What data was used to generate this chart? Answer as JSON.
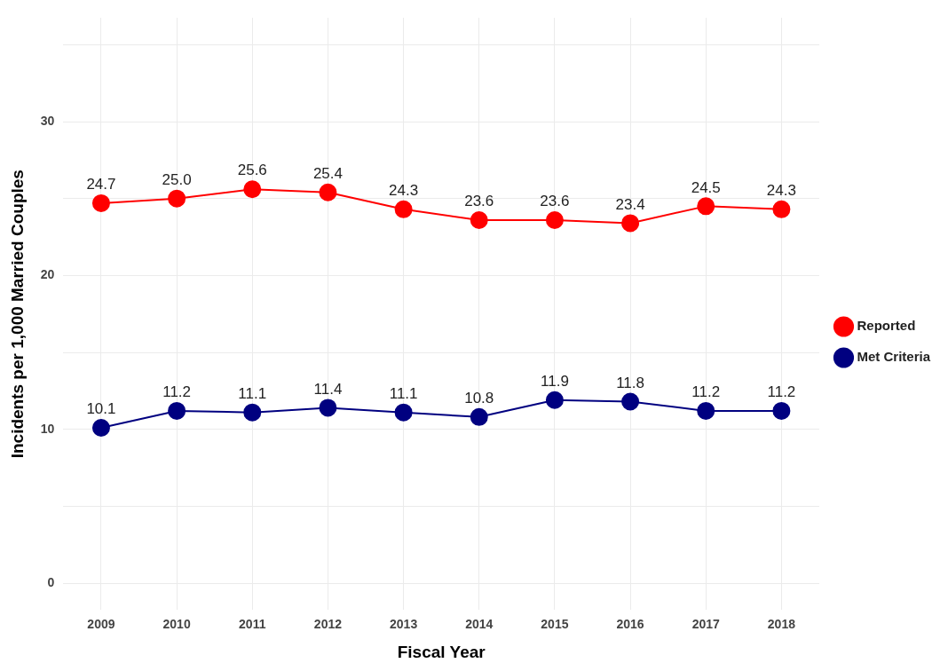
{
  "chart_data": {
    "type": "line",
    "xlabel": "Fiscal Year",
    "ylabel": "Incidents per 1,000 Married Couples",
    "categories": [
      "2009",
      "2010",
      "2011",
      "2012",
      "2013",
      "2014",
      "2015",
      "2016",
      "2017",
      "2018"
    ],
    "series": [
      {
        "name": "Reported",
        "color": "#ff0000",
        "values": [
          24.7,
          25.0,
          25.6,
          25.4,
          24.3,
          23.6,
          23.6,
          23.4,
          24.5,
          24.3
        ],
        "value_labels": [
          "24.7",
          "25.0",
          "25.6",
          "25.4",
          "24.3",
          "23.6",
          "23.6",
          "23.4",
          "24.5",
          "24.3"
        ]
      },
      {
        "name": "Met Criteria",
        "color": "#000080",
        "values": [
          10.1,
          11.2,
          11.1,
          11.4,
          11.1,
          10.8,
          11.9,
          11.8,
          11.2,
          11.2
        ],
        "value_labels": [
          "10.1",
          "11.2",
          "11.1",
          "11.4",
          "11.1",
          "10.8",
          "11.9",
          "11.8",
          "11.2",
          "11.2"
        ]
      }
    ],
    "ylim": [
      -1.75,
      36.75
    ],
    "yticks": [
      0,
      {
        "value": 5,
        "label": null
      },
      10,
      {
        "value": 15,
        "label": null
      },
      20,
      {
        "value": 25,
        "label": null
      },
      30,
      {
        "value": 35,
        "label": null
      }
    ],
    "grid": true,
    "legend": "right",
    "marker": "circle",
    "line_style": "solid"
  }
}
